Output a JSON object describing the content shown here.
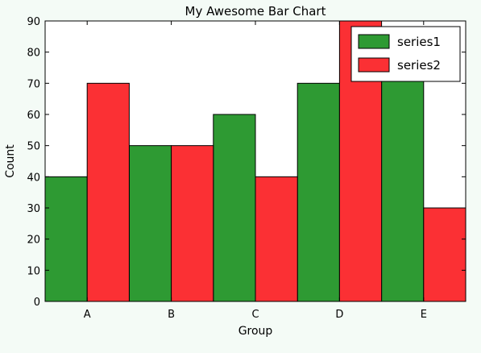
{
  "chart_data": {
    "type": "bar",
    "title": "My Awesome Bar Chart",
    "xlabel": "Group",
    "ylabel": "Count",
    "categories": [
      "A",
      "B",
      "C",
      "D",
      "E"
    ],
    "ylim": [
      0,
      90
    ],
    "yticks": [
      0,
      10,
      20,
      30,
      40,
      50,
      60,
      70,
      80,
      90
    ],
    "grid": false,
    "legend_position": "top-right",
    "series": [
      {
        "name": "series1",
        "color": "#2e9a33",
        "values": [
          40,
          50,
          60,
          70,
          80
        ]
      },
      {
        "name": "series2",
        "color": "#fb3034",
        "values": [
          70,
          50,
          40,
          90,
          30
        ]
      }
    ]
  }
}
